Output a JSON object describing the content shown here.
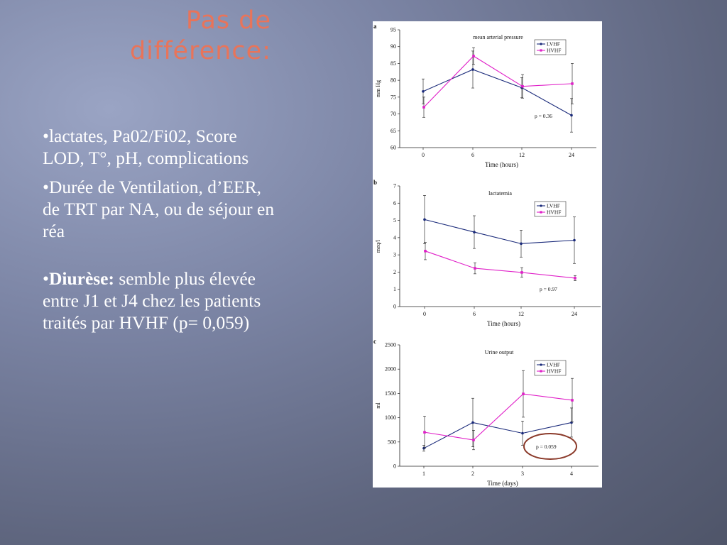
{
  "slide": {
    "title": "Pas de différence:",
    "bullets": [
      {
        "marker": "•",
        "bold": "",
        "text": "lactates, Pa02/Fi02, Score LOD, T°, pH, complications"
      },
      {
        "marker": "•",
        "bold": "",
        "text": "Durée de Ventilation, d’EER, de TRT par NA, ou de séjour en réa"
      },
      {
        "marker": "•",
        "bold": "Diurèse:",
        "text": " semble plus élevée entre J1 et J4 chez les patients traités par HVHF (p= 0,059)"
      }
    ]
  },
  "colors": {
    "title": "#e8745a",
    "lvhf": "#1a2a7a",
    "hvhf": "#e020c8",
    "highlight": "#8b3a2a"
  },
  "chart_data": [
    {
      "panel": "a",
      "type": "line",
      "title": "mean arterial pressure",
      "xlabel": "Time (hours)",
      "ylabel": "mm Hg",
      "categories": [
        "0",
        "6",
        "12",
        "24"
      ],
      "ylim": [
        60,
        95
      ],
      "yticks": [
        60,
        65,
        70,
        75,
        80,
        85,
        90,
        95
      ],
      "series": [
        {
          "name": "LVHF",
          "values": [
            76.7,
            83.2,
            77.8,
            69.6
          ],
          "err": [
            3.7,
            5.5,
            3.0,
            5.0
          ]
        },
        {
          "name": "HVHF",
          "values": [
            72.0,
            87.2,
            78.2,
            79.0
          ],
          "err": [
            3.0,
            2.5,
            3.5,
            6.0
          ]
        }
      ],
      "annotation": "p = 0.36",
      "legend": "top-right"
    },
    {
      "panel": "b",
      "type": "line",
      "title": "lactatemia",
      "xlabel": "Time (hours)",
      "ylabel": "meq/l",
      "categories": [
        "0",
        "6",
        "12",
        "24"
      ],
      "ylim": [
        0,
        7
      ],
      "yticks": [
        0,
        1,
        2,
        3,
        4,
        5,
        6,
        7
      ],
      "series": [
        {
          "name": "LVHF",
          "values": [
            5.05,
            4.32,
            3.65,
            3.85
          ],
          "err": [
            1.4,
            0.95,
            0.78,
            1.35
          ]
        },
        {
          "name": "HVHF",
          "values": [
            3.22,
            2.22,
            1.98,
            1.65
          ],
          "err": [
            0.5,
            0.32,
            0.28,
            0.15
          ]
        }
      ],
      "annotation": "p = 0.97",
      "legend": "top-right"
    },
    {
      "panel": "c",
      "type": "line",
      "title": "Urine output",
      "xlabel": "Time (days)",
      "ylabel": "ml",
      "categories": [
        "1",
        "2",
        "3",
        "4"
      ],
      "ylim": [
        0,
        2500
      ],
      "yticks": [
        0,
        500,
        1000,
        1500,
        2000,
        2500
      ],
      "series": [
        {
          "name": "LVHF",
          "values": [
            370,
            900,
            680,
            900
          ],
          "err": [
            60,
            500,
            250,
            300
          ]
        },
        {
          "name": "HVHF",
          "values": [
            700,
            540,
            1490,
            1360
          ],
          "err": [
            330,
            200,
            480,
            450
          ]
        }
      ],
      "annotation": "p = 0.059",
      "legend": "top-right"
    }
  ]
}
